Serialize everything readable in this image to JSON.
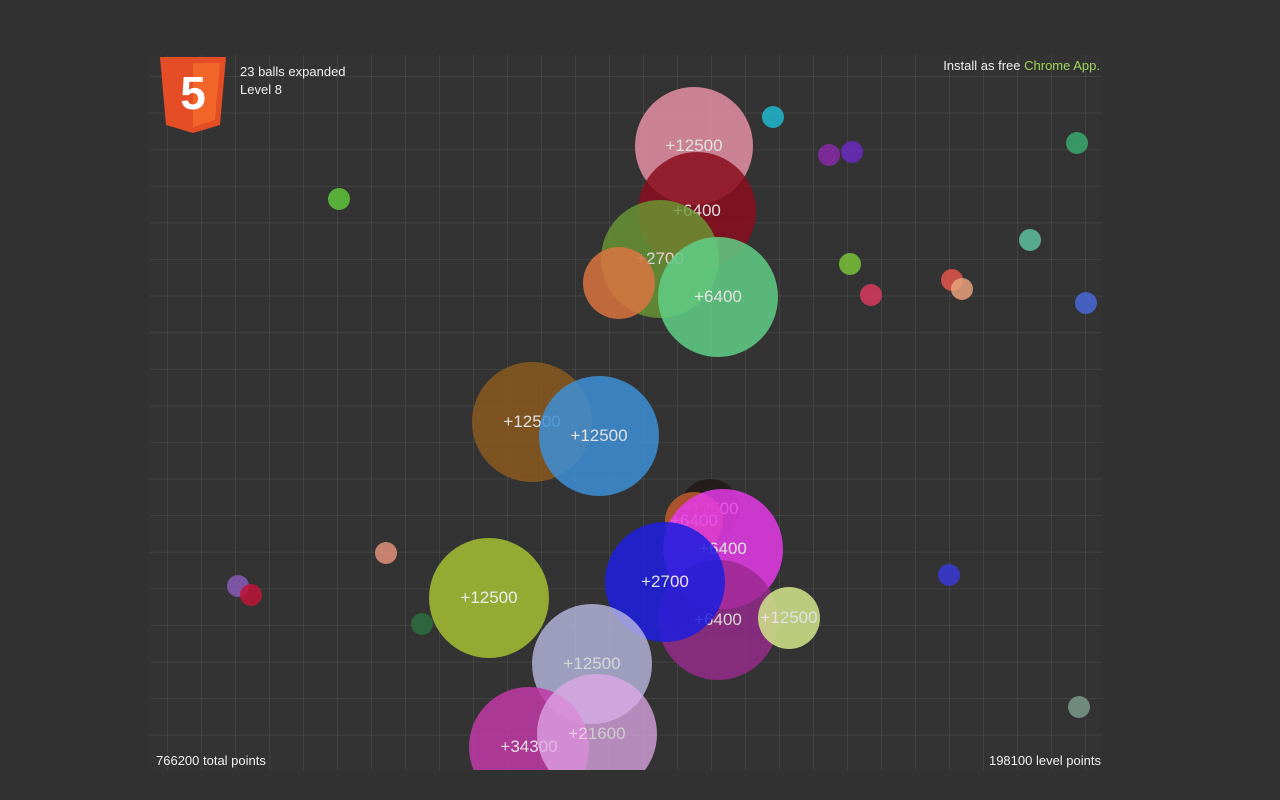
{
  "status": {
    "balls_expanded": "23 balls expanded",
    "level": "Level 8"
  },
  "promo": {
    "prefix": "Install as free ",
    "link": "Chrome App."
  },
  "footer": {
    "total_points": "766200 total points",
    "level_points": "198100 level points"
  },
  "logo": {
    "name": "html5-logo-icon",
    "glyph": "5"
  },
  "colors": {
    "background": "#323232",
    "link": "#9fd65a",
    "logo_orange": "#e44d26",
    "logo_light": "#f16529"
  },
  "expanded_balls": [
    {
      "label": "+12500",
      "color": "#e58fa6",
      "opacity": 0.85
    },
    {
      "label": "+6400",
      "color": "#8a0e1d",
      "opacity": 0.85
    },
    {
      "label": "+2700",
      "color": "#6b9a35",
      "opacity": 0.8
    },
    {
      "label": "",
      "color": "#d9733f",
      "opacity": 0.85
    },
    {
      "label": "+6400",
      "color": "#5fcf86",
      "opacity": 0.85
    },
    {
      "label": "+12500",
      "color": "#8a5a1f",
      "opacity": 0.85
    },
    {
      "label": "+12500",
      "color": "#3d8fd6",
      "opacity": 0.85
    },
    {
      "label": "+12500",
      "color": "#241a1a",
      "opacity": 0.9
    },
    {
      "label": "+6400",
      "color": "#c05a2e",
      "opacity": 0.85
    },
    {
      "label": "+6400",
      "color": "#e53ae8",
      "opacity": 0.85
    },
    {
      "label": "+6400",
      "color": "#9a2a8e",
      "opacity": 0.8
    },
    {
      "label": "+2700",
      "color": "#1d1ee0",
      "opacity": 0.85
    },
    {
      "label": "+12500",
      "color": "#d2e68a",
      "opacity": 0.85
    },
    {
      "label": "+12500",
      "color": "#a0b733",
      "opacity": 0.9
    },
    {
      "label": "+12500",
      "color": "#b8b8e0",
      "opacity": 0.8
    },
    {
      "label": "+34300",
      "color": "#c23aa8",
      "opacity": 0.85
    },
    {
      "label": "+21600",
      "color": "#e0a8e8",
      "opacity": 0.75
    }
  ],
  "moving_balls": [
    {
      "color": "#1fb8cf"
    },
    {
      "color": "#8a2aa8"
    },
    {
      "color": "#6a2ac0"
    },
    {
      "color": "#3aa86e"
    },
    {
      "color": "#5ec43a"
    },
    {
      "color": "#5fc0a0"
    },
    {
      "color": "#7bc23a"
    },
    {
      "color": "#d83a5e"
    },
    {
      "color": "#e2564e"
    },
    {
      "color": "#e8a07a"
    },
    {
      "color": "#4a68d8"
    },
    {
      "color": "#e0907a"
    },
    {
      "color": "#8a5ab8"
    },
    {
      "color": "#c0143a"
    },
    {
      "color": "#2e6e3e"
    },
    {
      "color": "#3a3ad8"
    },
    {
      "color": "#7a9a8a"
    }
  ]
}
